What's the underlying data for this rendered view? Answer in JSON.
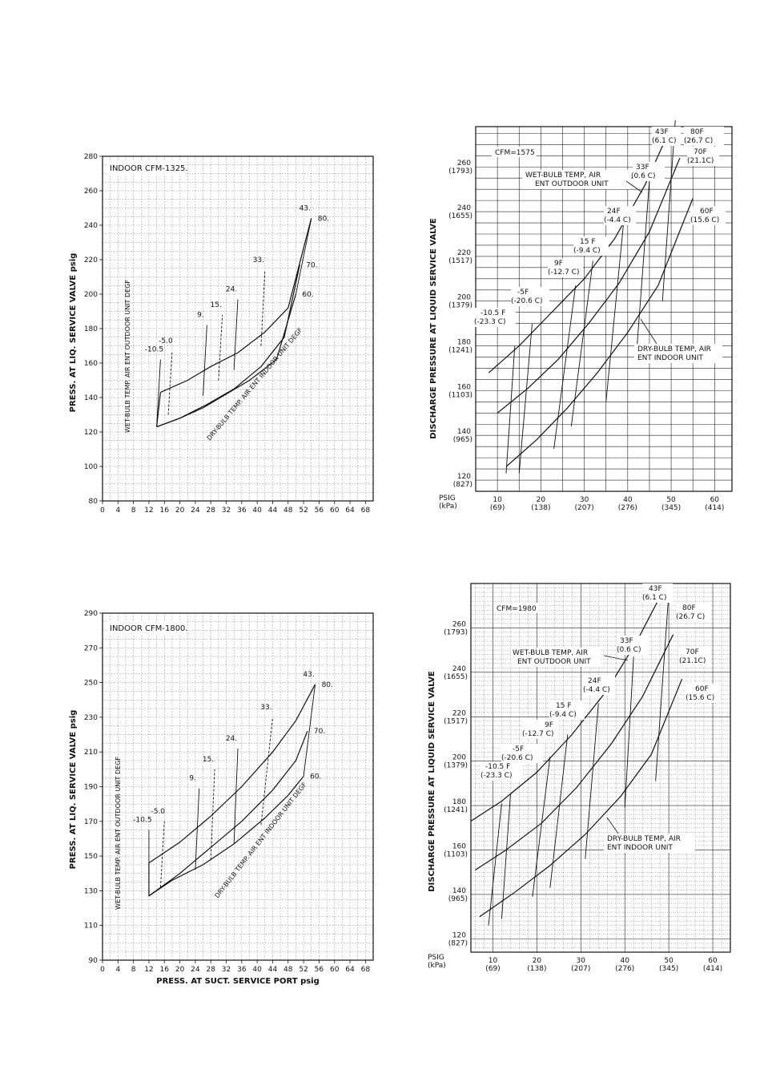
{
  "chart_data": [
    {
      "type": "line",
      "id": "chart1",
      "title": "INDOOR CFM-1325.",
      "xlabel": "",
      "ylabel": "PRESS. AT LIQ. SERVICE VALVE psig",
      "x_ticks": [
        "0",
        "4",
        "8",
        "12",
        "16",
        "20",
        "24",
        "28",
        "32",
        "36",
        "40",
        "44",
        "48",
        "52",
        "56",
        "60",
        "64",
        "68"
      ],
      "y_ticks": [
        "80",
        "100",
        "120",
        "140",
        "160",
        "180",
        "200",
        "220",
        "240",
        "260",
        "280"
      ],
      "xlim": [
        0,
        70
      ],
      "ylim": [
        80,
        280
      ],
      "series": [
        {
          "name": "80.",
          "points": [
            [
              15,
              143
            ],
            [
              22,
              150
            ],
            [
              28,
              158
            ],
            [
              35,
              166
            ],
            [
              42,
              178
            ],
            [
              48,
              192
            ],
            [
              54,
              244
            ]
          ]
        },
        {
          "name": "70.",
          "points": [
            [
              14,
              123
            ],
            [
              20,
              128
            ],
            [
              27,
              136
            ],
            [
              34,
              145
            ],
            [
              41,
              158
            ],
            [
              47,
              175
            ],
            [
              51,
              217
            ]
          ]
        },
        {
          "name": "60.",
          "points": [
            [
              14,
              123
            ],
            [
              20,
              128
            ],
            [
              26,
              134
            ],
            [
              32,
              142
            ],
            [
              38,
              150
            ],
            [
              45,
              162
            ],
            [
              50,
              200
            ]
          ]
        }
      ],
      "wet_bulb_lines": [
        {
          "label": "-10.5",
          "from": [
            14,
            123
          ],
          "to": [
            15,
            162
          ]
        },
        {
          "label": "-5.0",
          "from": [
            17,
            130
          ],
          "to": [
            18,
            167
          ]
        },
        {
          "label": "9.",
          "from": [
            26,
            141
          ],
          "to": [
            27,
            182
          ]
        },
        {
          "label": "15.",
          "from": [
            30,
            150
          ],
          "to": [
            31,
            188
          ]
        },
        {
          "label": "24.",
          "from": [
            34,
            156
          ],
          "to": [
            35,
            197
          ]
        },
        {
          "label": "33.",
          "from": [
            41,
            170
          ],
          "to": [
            42,
            214
          ]
        },
        {
          "label": "43.",
          "from": [
            50,
            200
          ],
          "to": [
            54,
            244
          ]
        }
      ],
      "annotations": [
        "WET-BULB TEMP. AIR ENT OUTDOOR UNIT DEGF",
        "DRY-BULB TEMP. AIR ENT INDOOR UNIT DEGF"
      ]
    },
    {
      "type": "line",
      "id": "chart2",
      "title": "CFM=1575",
      "xlabel_psig": "PSIG",
      "xlabel_kpa": "(kPa)",
      "ylabel": "DISCHARGE PRESSURE AT LIQUID SERVICE VALVE",
      "x_ticks": [
        {
          "psig": "10",
          "kpa": "(69)"
        },
        {
          "psig": "20",
          "kpa": "(138)"
        },
        {
          "psig": "30",
          "kpa": "(207)"
        },
        {
          "psig": "40",
          "kpa": "(276)"
        },
        {
          "psig": "50",
          "kpa": "(345)"
        },
        {
          "psig": "60",
          "kpa": "(414)"
        }
      ],
      "y_ticks": [
        {
          "psig": "120",
          "kpa": "(827)"
        },
        {
          "psig": "140",
          "kpa": "(965)"
        },
        {
          "psig": "160",
          "kpa": "(1103)"
        },
        {
          "psig": "180",
          "kpa": "(1241)"
        },
        {
          "psig": "200",
          "kpa": "(1379)"
        },
        {
          "psig": "220",
          "kpa": "(1517)"
        },
        {
          "psig": "240",
          "kpa": "(1655)"
        },
        {
          "psig": "260",
          "kpa": "(1793)"
        }
      ],
      "xlim": [
        5,
        64
      ],
      "ylim": [
        115,
        278
      ],
      "series": [
        {
          "name": "80F (26.7 C)",
          "points": [
            [
              8,
              168
            ],
            [
              15,
              180
            ],
            [
              22,
              194
            ],
            [
              30,
              210
            ],
            [
              37,
              228
            ],
            [
              44,
              252
            ],
            [
              50,
              278
            ]
          ]
        },
        {
          "name": "70F (21.1 C)",
          "points": [
            [
              10,
              150
            ],
            [
              17,
              161
            ],
            [
              24,
              174
            ],
            [
              31,
              190
            ],
            [
              38,
              208
            ],
            [
              45,
              231
            ],
            [
              52,
              264
            ]
          ]
        },
        {
          "name": "60F (15.6 C)",
          "points": [
            [
              12,
              126
            ],
            [
              19,
              138
            ],
            [
              26,
              152
            ],
            [
              33,
              168
            ],
            [
              40,
              186
            ],
            [
              47,
              207
            ],
            [
              55,
              246
            ]
          ]
        }
      ],
      "wet_bulb_lines": [
        {
          "label": "-10.5 F (-23.3 C)",
          "from": [
            12,
            123
          ],
          "to": [
            14,
            180
          ]
        },
        {
          "label": "-5F (-20.6 C)",
          "from": [
            15,
            123
          ],
          "to": [
            18,
            190
          ]
        },
        {
          "label": "9F (-12.7 C)",
          "from": [
            23,
            134
          ],
          "to": [
            28,
            207
          ]
        },
        {
          "label": "15 F (-9.4 C)",
          "from": [
            27,
            144
          ],
          "to": [
            32,
            218
          ]
        },
        {
          "label": "24F (-4.4 C)",
          "from": [
            35,
            155
          ],
          "to": [
            39,
            234
          ]
        },
        {
          "label": "33F (0.6 C)",
          "from": [
            42,
            176
          ],
          "to": [
            45,
            254
          ]
        },
        {
          "label": "43F (6.1 C)",
          "from": [
            48,
            200
          ],
          "to": [
            51,
            282
          ]
        }
      ],
      "labels": {
        "t43": "43F",
        "t43c": "(6.1 C)",
        "t80": "80F",
        "t80c": "(26.7 C)",
        "t70": "70F",
        "t70c": "(21.1C)",
        "t33": "33F",
        "t33c": "(0.6 C)",
        "t24": "24F",
        "t24c": "(-4.4 C)",
        "t60": "60F",
        "t60c": "(15.6 C)",
        "t15": "15 F",
        "t15c": "(-9.4 C)",
        "t9": "9F",
        "t9c": "(-12.7 C)",
        "t5": "-5F",
        "t5c": "(-20.6 C)",
        "t10": "-10.5 F",
        "t10c": "(-23.3 C)",
        "wb1": "WET-BULB TEMP, AIR",
        "wb2": "ENT OUTDOOR UNIT",
        "db1": "DRY-BULB TEMP, AIR",
        "db2": "ENT INDOOR UNIT"
      }
    },
    {
      "type": "line",
      "id": "chart3",
      "title": "INDOOR CFM-1800.",
      "xlabel": "PRESS. AT SUCT. SERVICE PORT psig",
      "ylabel": "PRESS. AT LIQ. SERVICE VALVE psig",
      "x_ticks": [
        "0",
        "4",
        "8",
        "12",
        "16",
        "20",
        "24",
        "28",
        "32",
        "36",
        "40",
        "44",
        "48",
        "52",
        "56",
        "60",
        "64",
        "68"
      ],
      "y_ticks": [
        "90",
        "110",
        "130",
        "150",
        "170",
        "190",
        "210",
        "230",
        "250",
        "270",
        "290"
      ],
      "xlim": [
        0,
        70
      ],
      "ylim": [
        90,
        290
      ],
      "series": [
        {
          "name": "80.",
          "points": [
            [
              12,
              146
            ],
            [
              20,
              158
            ],
            [
              28,
              173
            ],
            [
              36,
              190
            ],
            [
              44,
              210
            ],
            [
              50,
              228
            ],
            [
              55,
              249
            ]
          ]
        },
        {
          "name": "70.",
          "points": [
            [
              12,
              127
            ],
            [
              20,
              140
            ],
            [
              28,
              155
            ],
            [
              36,
              170
            ],
            [
              44,
              188
            ],
            [
              50,
              205
            ],
            [
              53,
              222
            ]
          ]
        },
        {
          "name": "60.",
          "points": [
            [
              12,
              127
            ],
            [
              18,
              136
            ],
            [
              26,
              145
            ],
            [
              34,
              157
            ],
            [
              42,
              172
            ],
            [
              48,
              185
            ],
            [
              52,
              196
            ]
          ]
        }
      ],
      "wet_bulb_lines": [
        {
          "label": "-10.5",
          "from": [
            12,
            127
          ],
          "to": [
            12,
            165
          ]
        },
        {
          "label": "-5.0",
          "from": [
            15,
            132
          ],
          "to": [
            16,
            170
          ]
        },
        {
          "label": "9.",
          "from": [
            24,
            142
          ],
          "to": [
            25,
            189
          ]
        },
        {
          "label": "15.",
          "from": [
            28,
            148
          ],
          "to": [
            29,
            200
          ]
        },
        {
          "label": "24.",
          "from": [
            34,
            157
          ],
          "to": [
            35,
            212
          ]
        },
        {
          "label": "33.",
          "from": [
            41,
            168
          ],
          "to": [
            44,
            230
          ]
        },
        {
          "label": "43.",
          "from": [
            52,
            196
          ],
          "to": [
            55,
            249
          ]
        }
      ],
      "annotations": [
        "WET-BULB TEMP. AIR ENT OUTDOOR UNIT DEGF",
        "DRY-BULB TEMP. AIR ENT INDOOR UNIT DEGF"
      ]
    },
    {
      "type": "line",
      "id": "chart4",
      "title": "CFM=1980",
      "xlabel_psig": "PSIG",
      "xlabel_kpa": "(kPa)",
      "ylabel": "DISCHARGE PRESSURE AT LIQUID SERVICE VALVE",
      "x_ticks": [
        {
          "psig": "10",
          "kpa": "(69)"
        },
        {
          "psig": "20",
          "kpa": "(138)"
        },
        {
          "psig": "30",
          "kpa": "(207)"
        },
        {
          "psig": "40",
          "kpa": "(276)"
        },
        {
          "psig": "50",
          "kpa": "(345)"
        },
        {
          "psig": "60",
          "kpa": "(414)"
        }
      ],
      "y_ticks": [
        {
          "psig": "120",
          "kpa": "(827)"
        },
        {
          "psig": "140",
          "kpa": "(965)"
        },
        {
          "psig": "160",
          "kpa": "(1103)"
        },
        {
          "psig": "180",
          "kpa": "(1241)"
        },
        {
          "psig": "200",
          "kpa": "(1379)"
        },
        {
          "psig": "220",
          "kpa": "(1517)"
        },
        {
          "psig": "240",
          "kpa": "(1655)"
        },
        {
          "psig": "260",
          "kpa": "(1793)"
        }
      ],
      "xlim": [
        5,
        64
      ],
      "ylim": [
        114,
        280
      ],
      "series": [
        {
          "name": "80F (26.7 C)",
          "points": [
            [
              5,
              173
            ],
            [
              12,
              182
            ],
            [
              20,
              195
            ],
            [
              28,
              212
            ],
            [
              36,
              232
            ],
            [
              43,
              255
            ],
            [
              48,
              274
            ]
          ]
        },
        {
          "name": "70F (21.1C)",
          "points": [
            [
              6,
              151
            ],
            [
              13,
              160
            ],
            [
              21,
              172
            ],
            [
              29,
              188
            ],
            [
              37,
              208
            ],
            [
              44,
              229
            ],
            [
              51,
              257
            ]
          ]
        },
        {
          "name": "60F (15.6 C)",
          "points": [
            [
              7,
              130
            ],
            [
              15,
              141
            ],
            [
              23,
              153
            ],
            [
              31,
              167
            ],
            [
              39,
              184
            ],
            [
              46,
              203
            ],
            [
              53,
              237
            ]
          ]
        }
      ],
      "wet_bulb_lines": [
        {
          "label": "-10.5 F (-23.3 C)",
          "from": [
            9,
            126
          ],
          "to": [
            12,
            181
          ]
        },
        {
          "label": "-5F (-20.6 C)",
          "from": [
            12,
            129
          ],
          "to": [
            14,
            185
          ]
        },
        {
          "label": "9F (-12.7 C)",
          "from": [
            19,
            139
          ],
          "to": [
            23,
            202
          ]
        },
        {
          "label": "15 F (-9.4 C)",
          "from": [
            23,
            143
          ],
          "to": [
            27,
            212
          ]
        },
        {
          "label": "24F (-4.4 C)",
          "from": [
            31,
            156
          ],
          "to": [
            34,
            226
          ]
        },
        {
          "label": "33F (0.6 C)",
          "from": [
            40,
            179
          ],
          "to": [
            42,
            247
          ]
        },
        {
          "label": "43F (6.1 C)",
          "from": [
            47,
            191
          ],
          "to": [
            50,
            276
          ]
        }
      ],
      "labels": {
        "t43": "43F",
        "t43c": "(6.1 C)",
        "t80": "80F",
        "t80c": "(26.7 C)",
        "t70": "70F",
        "t70c": "(21.1C)",
        "t33": "33F",
        "t33c": "(0.6 C)",
        "t24": "24F",
        "t24c": "(-4.4 C)",
        "t60": "60F",
        "t60c": "(15.6 C)",
        "t15": "15 F",
        "t15c": "(-9.4 C)",
        "t9": "9F",
        "t9c": "(-12.7 C)",
        "t5": "-5F",
        "t5c": "(-20.6 C)",
        "t10": "-10.5 F",
        "t10c": "(-23.3 C)",
        "wb1": "WET-BULB TEMP, AIR",
        "wb2": "ENT OUTDOOR UNIT",
        "db1": "DRY-BULB TEMP, AIR",
        "db2": "ENT INDOOR UNIT"
      }
    }
  ]
}
